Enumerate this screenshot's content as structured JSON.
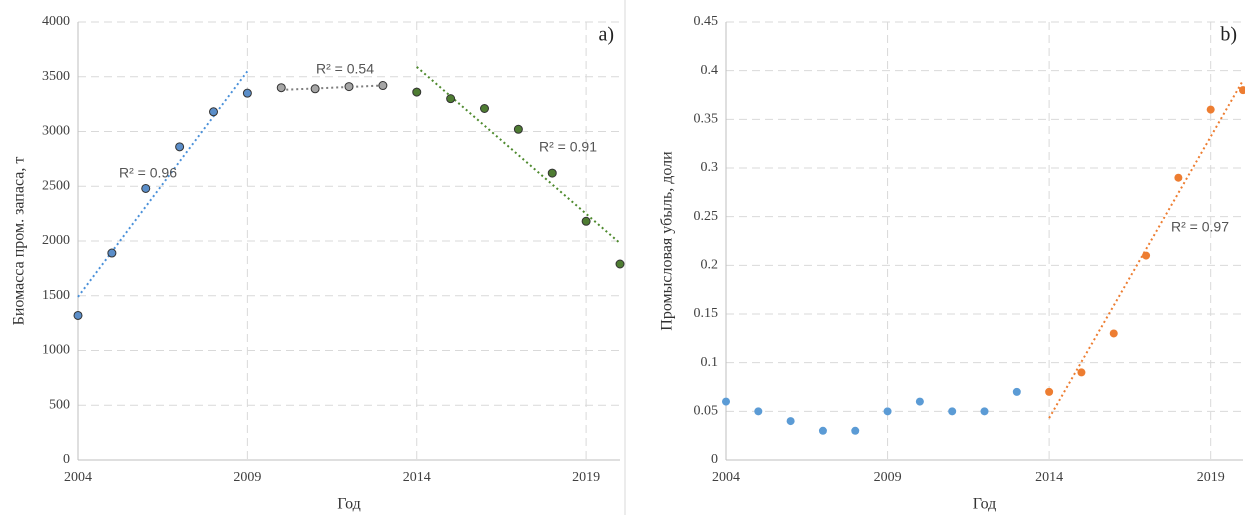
{
  "chart_data": [
    {
      "type": "scatter",
      "panel": "a)",
      "xlabel": "Год",
      "ylabel": "Биомасса пром. запаса, т",
      "xlim": [
        2004,
        2020
      ],
      "xticks": [
        2004,
        2009,
        2014,
        2019
      ],
      "ylim": [
        0,
        4000
      ],
      "yticks": [
        0,
        500,
        1000,
        1500,
        2000,
        2500,
        3000,
        3500,
        4000
      ],
      "grid": true,
      "series": [
        {
          "color": "#5b8ec9",
          "x": [
            2004,
            2005,
            2006,
            2007,
            2008,
            2009
          ],
          "values": [
            1320,
            1890,
            2480,
            2860,
            3180,
            3350
          ]
        },
        {
          "color": "#a6a6a6",
          "x": [
            2010,
            2011,
            2012,
            2013
          ],
          "values": [
            3400,
            3390,
            3410,
            3420
          ]
        },
        {
          "color": "#4e7c32",
          "x": [
            2014,
            2015,
            2016,
            2017,
            2018,
            2019,
            2020
          ],
          "values": [
            3360,
            3300,
            3210,
            3020,
            2620,
            2180,
            1790
          ]
        }
      ],
      "trendlines": [
        {
          "color": "#4a90d9",
          "x": [
            2004,
            2009
          ],
          "values": [
            1490,
            3550
          ]
        },
        {
          "color": "#7f7f7f",
          "x": [
            2010,
            2013
          ],
          "values": [
            3380,
            3420
          ]
        },
        {
          "color": "#4e8a2e",
          "x": [
            2014,
            2020
          ],
          "values": [
            3590,
            1980
          ]
        }
      ],
      "annotations": [
        "R² = 0.96",
        "R² = 0.54",
        "R² = 0.91"
      ]
    },
    {
      "type": "scatter",
      "panel": "b)",
      "xlabel": "Год",
      "ylabel": "Промысловая убыль, доли",
      "xlim": [
        2004,
        2020
      ],
      "xticks": [
        2004,
        2009,
        2014,
        2019
      ],
      "ylim": [
        0,
        0.45
      ],
      "yticks": [
        0,
        0.05,
        0.1,
        0.15,
        0.2,
        0.25,
        0.3,
        0.35,
        0.4,
        0.45
      ],
      "grid": true,
      "series": [
        {
          "color": "#5b9bd5",
          "x": [
            2004,
            2005,
            2006,
            2007,
            2008,
            2009,
            2010,
            2011,
            2012,
            2013
          ],
          "values": [
            0.06,
            0.05,
            0.04,
            0.03,
            0.03,
            0.05,
            0.06,
            0.05,
            0.05,
            0.07
          ]
        },
        {
          "color": "#ed7d31",
          "x": [
            2014,
            2015,
            2016,
            2017,
            2018,
            2019,
            2020
          ],
          "values": [
            0.07,
            0.09,
            0.13,
            0.21,
            0.29,
            0.36,
            0.38
          ]
        }
      ],
      "trendlines": [
        {
          "color": "#ed7d31",
          "x": [
            2014,
            2020
          ],
          "values": [
            0.043,
            0.39
          ]
        }
      ],
      "annotations": [
        "R² = 0.97"
      ]
    }
  ]
}
